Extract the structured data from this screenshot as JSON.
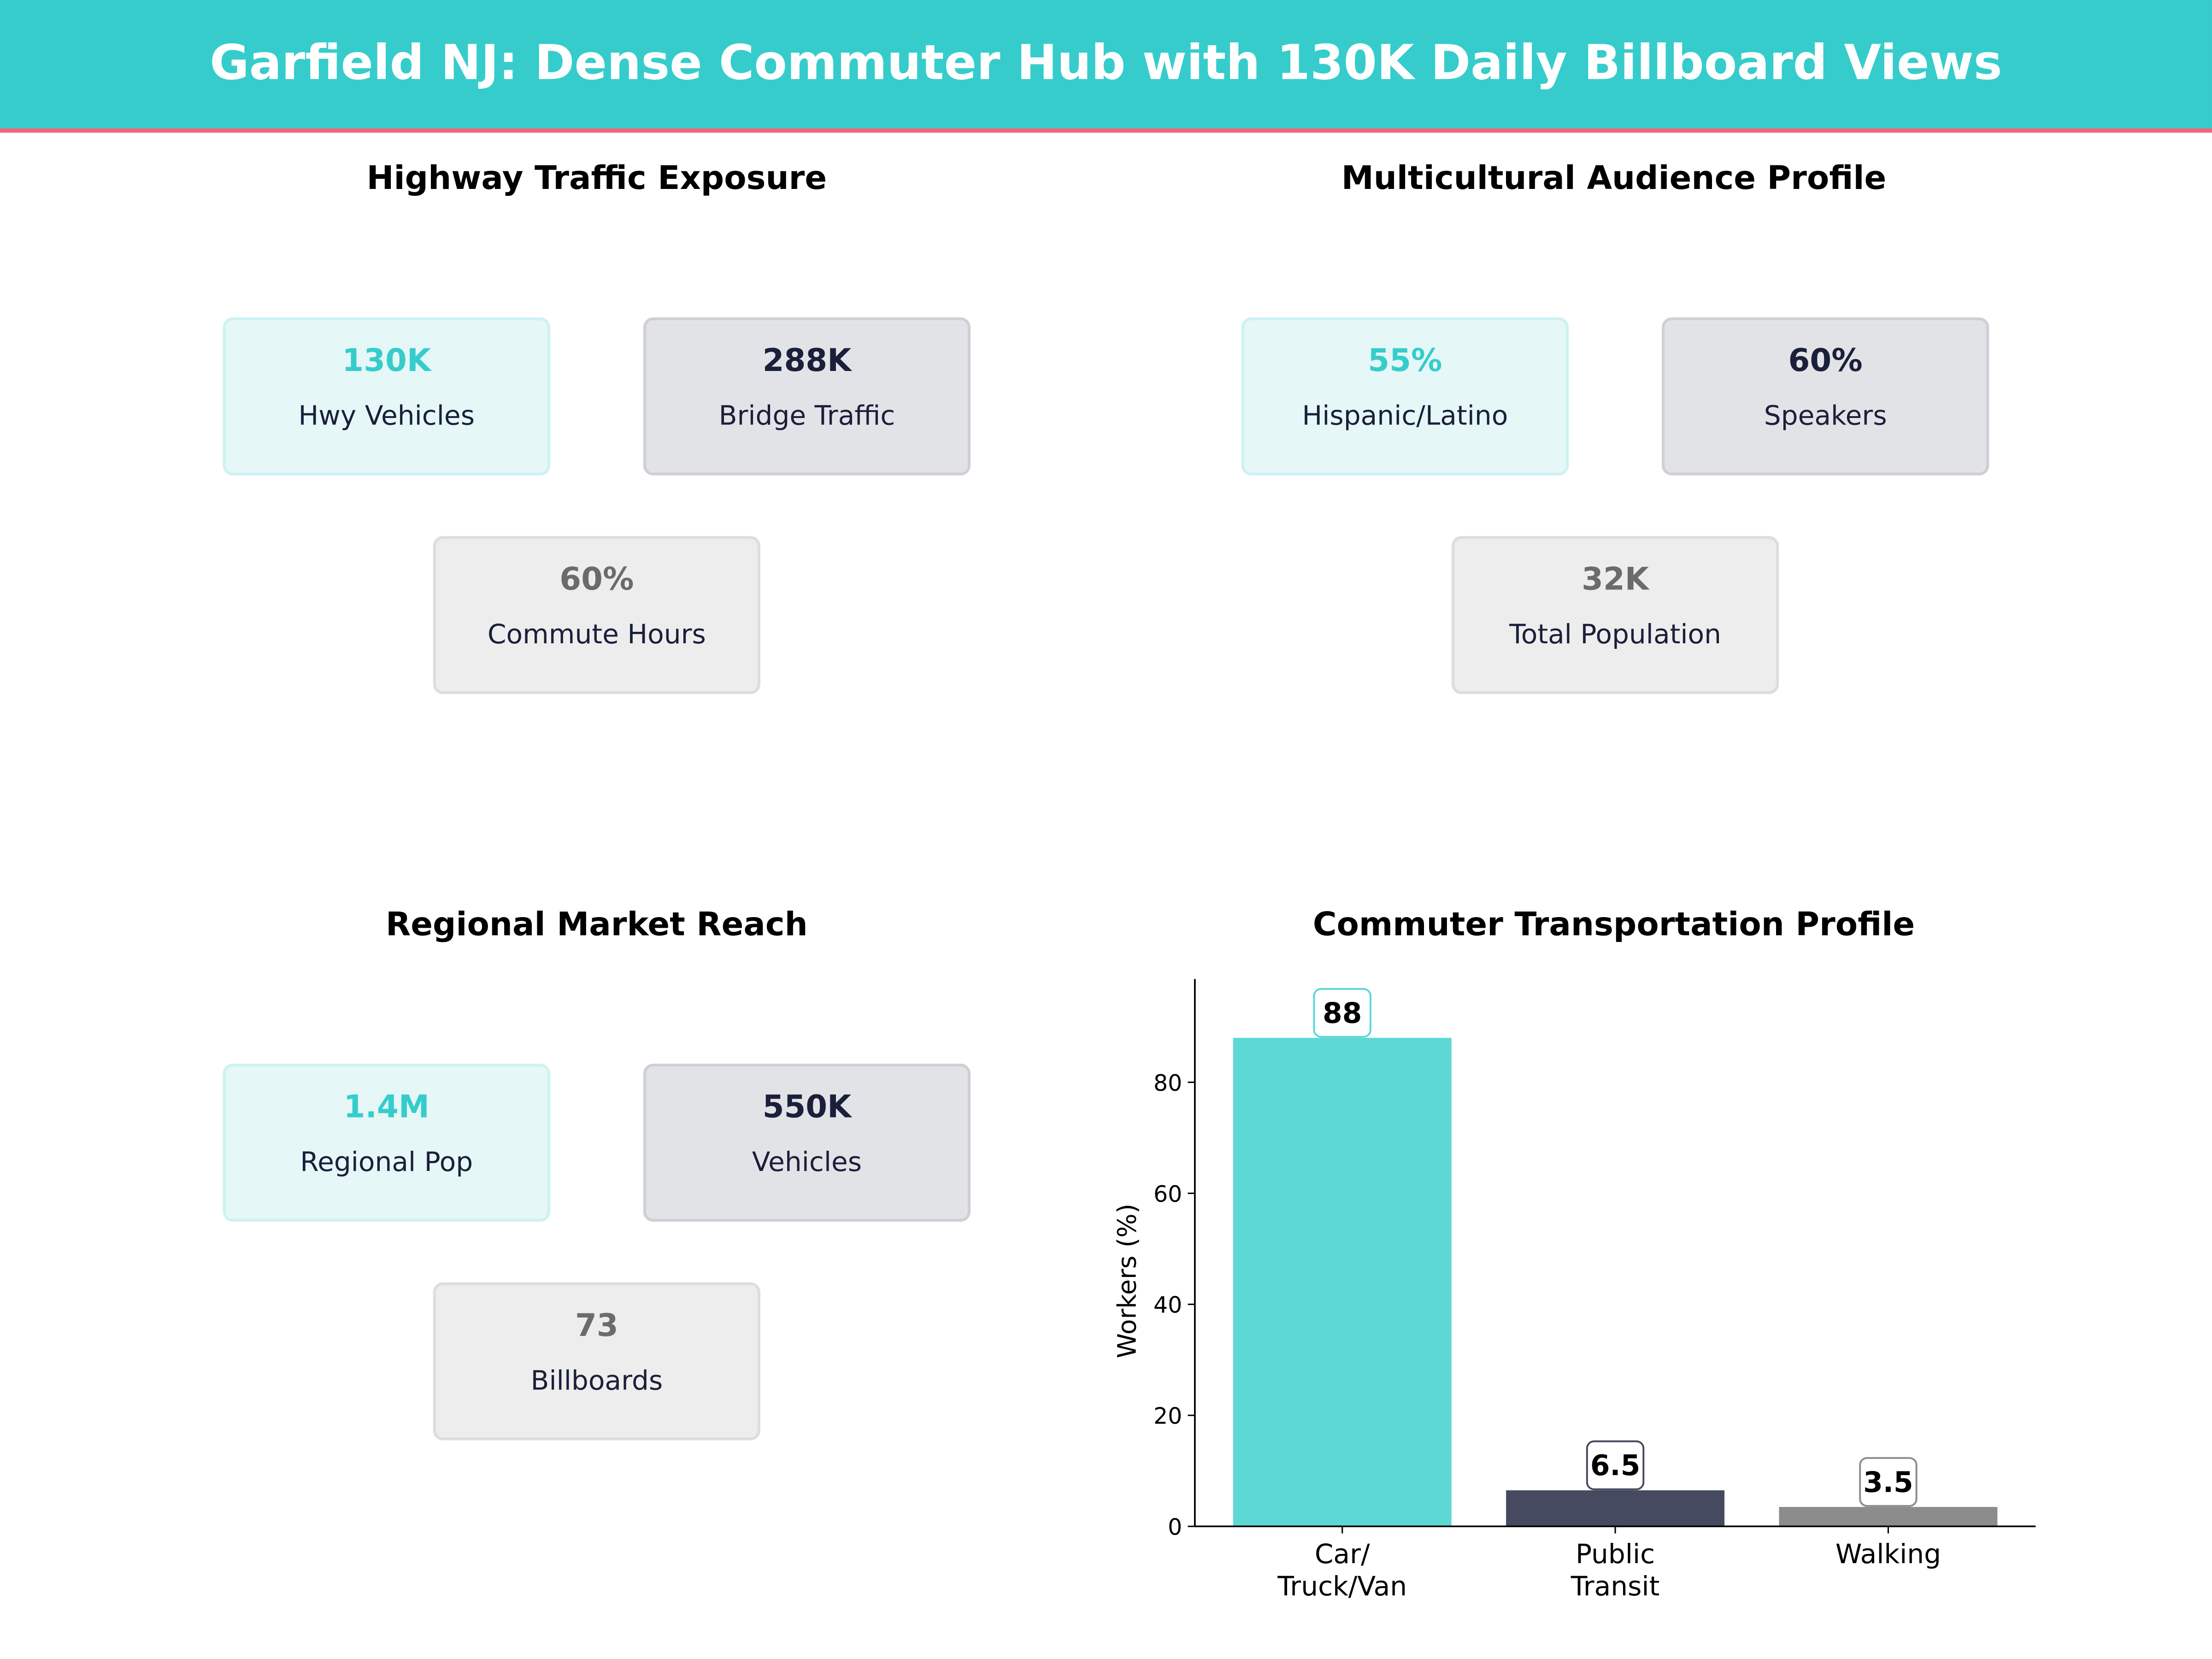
{
  "title": "Garfield NJ: Dense Commuter Hub with 130K Daily Billboard Views",
  "panels": [
    {
      "title": "Highway Traffic Exposure",
      "cards": [
        {
          "value": "130K",
          "label": "Hwy Vehicles"
        },
        {
          "value": "288K",
          "label": "Bridge Traffic"
        },
        {
          "value": "60%",
          "label": "Commute Hours"
        }
      ]
    },
    {
      "title": "Multicultural Audience Profile",
      "cards": [
        {
          "value": "55%",
          "label": "Hispanic/Latino"
        },
        {
          "value": "60%",
          "label": "Speakers"
        },
        {
          "value": "32K",
          "label": "Total Population"
        }
      ]
    },
    {
      "title": "Regional Market Reach",
      "cards": [
        {
          "value": "1.4M",
          "label": "Regional Pop"
        },
        {
          "value": "550K",
          "label": "Vehicles"
        },
        {
          "value": "73",
          "label": "Billboards"
        }
      ]
    }
  ],
  "colors": {
    "header": "#36cccc",
    "accent_line": "#ee6677",
    "teal": "#36cccc",
    "dark": "#1a1f3a",
    "gray": "#6b6b6b"
  },
  "chart_data": {
    "type": "bar",
    "title": "Commuter Transportation Profile",
    "categories": [
      "Car/\nTruck/Van",
      "Public\nTransit",
      "Walking"
    ],
    "values": [
      88,
      6.5,
      3.5
    ],
    "data_labels": [
      "88",
      "6.5",
      "3.5"
    ],
    "colors": [
      "#5dd8d5",
      "#464a60",
      "#8c8c8c"
    ],
    "xlabel": "",
    "ylabel": "Workers (%)",
    "ylim": [
      0,
      98.6
    ],
    "yticks": [
      0,
      20,
      40,
      60,
      80
    ],
    "grid": false
  }
}
